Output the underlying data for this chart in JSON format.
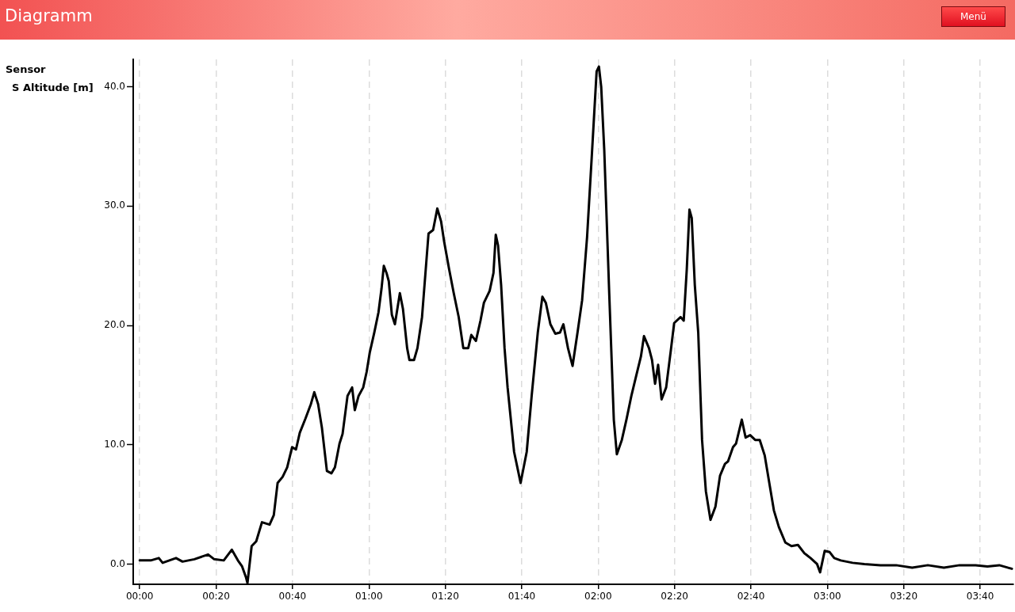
{
  "chart_data": {
    "type": "line",
    "title": "Diagramm",
    "annotations": [
      "Menü"
    ],
    "legend_title": "Sensor",
    "legend": "left",
    "grid": "x",
    "line_style": "solid",
    "marker": "none",
    "xlim": [
      -1.7,
      228.7
    ],
    "ylim": [
      -1.7,
      42.3
    ],
    "xticks": [
      {
        "value": 0,
        "label": "00:00"
      },
      {
        "value": 20,
        "label": "00:20"
      },
      {
        "value": 40,
        "label": "00:40"
      },
      {
        "value": 60,
        "label": "01:00"
      },
      {
        "value": 80,
        "label": "01:20"
      },
      {
        "value": 100,
        "label": "01:40"
      },
      {
        "value": 120,
        "label": "02:00"
      },
      {
        "value": 140,
        "label": "02:20"
      },
      {
        "value": 160,
        "label": "02:40"
      },
      {
        "value": 180,
        "label": "03:00"
      },
      {
        "value": 200,
        "label": "03:20"
      },
      {
        "value": 220,
        "label": "03:40"
      }
    ],
    "yticks": [
      {
        "value": 0,
        "label": "0.0"
      },
      {
        "value": 10,
        "label": "10.0"
      },
      {
        "value": 20,
        "label": "20.0"
      },
      {
        "value": 30,
        "label": "30.0"
      },
      {
        "value": 40,
        "label": "40.0"
      }
    ],
    "series": [
      {
        "name": "S Altitude [m]",
        "color": "#000000",
        "x": [
          0,
          2.9,
          5.0,
          6.0,
          9.5,
          11.2,
          14.3,
          17.9,
          19.5,
          22.0,
          24.1,
          25.7,
          26.8,
          27.8,
          28.2,
          29.3,
          30.5,
          32.0,
          34.0,
          35.1,
          36.1,
          37.4,
          38.6,
          39.9,
          40.9,
          41.9,
          43.4,
          44.8,
          45.7,
          46.7,
          47.7,
          49.0,
          50.2,
          51.1,
          52.3,
          53.1,
          54.4,
          55.6,
          56.3,
          57.3,
          58.5,
          59.4,
          60.2,
          61.4,
          62.5,
          63.3,
          63.9,
          64.6,
          65.2,
          66.0,
          66.8,
          68.1,
          68.9,
          70.0,
          70.6,
          71.8,
          72.7,
          73.9,
          75.6,
          76.8,
          77.9,
          78.9,
          79.7,
          81.0,
          82.2,
          83.5,
          84.7,
          86.0,
          86.8,
          88.0,
          89.2,
          90.1,
          91.6,
          92.6,
          93.2,
          93.8,
          94.6,
          95.5,
          96.3,
          98.0,
          99.7,
          101.3,
          102.6,
          104.2,
          105.4,
          106.3,
          107.5,
          108.8,
          110.0,
          110.9,
          112.1,
          113.3,
          114.6,
          115.8,
          117.1,
          118.3,
          119.6,
          120.2,
          120.8,
          121.6,
          122.9,
          124.1,
          124.9,
          126.2,
          127.4,
          128.7,
          129.9,
          131.2,
          132.0,
          133.3,
          134.1,
          134.9,
          135.7,
          136.6,
          137.8,
          139.1,
          139.9,
          141.6,
          142.4,
          143.2,
          143.9,
          144.5,
          145.3,
          146.2,
          147.2,
          148.2,
          149.4,
          150.7,
          151.9,
          153.2,
          154.0,
          155.3,
          156.1,
          157.6,
          158.6,
          159.8,
          161.1,
          162.3,
          163.6,
          164.8,
          166.0,
          167.3,
          169.0,
          170.6,
          172.3,
          174.0,
          175.6,
          177.3,
          178.1,
          179.3,
          180.6,
          181.8,
          183.5,
          186.6,
          189.7,
          193.9,
          198.0,
          202.2,
          206.3,
          210.5,
          214.6,
          218.8,
          221.9,
          225.0,
          228.3
        ],
        "values": [
          0.3,
          0.3,
          0.5,
          0.1,
          0.5,
          0.2,
          0.4,
          0.8,
          0.4,
          0.3,
          1.2,
          0.3,
          -0.2,
          -1.1,
          -1.6,
          1.5,
          1.9,
          3.5,
          3.3,
          4.1,
          6.8,
          7.3,
          8.1,
          9.8,
          9.6,
          11.0,
          12.2,
          13.4,
          14.4,
          13.4,
          11.4,
          7.8,
          7.6,
          8.1,
          10.1,
          10.9,
          14.1,
          14.8,
          12.9,
          14.1,
          14.8,
          16.1,
          17.7,
          19.4,
          21.1,
          23.1,
          25.0,
          24.4,
          23.7,
          20.9,
          20.1,
          22.7,
          21.4,
          18.1,
          17.1,
          17.1,
          18.1,
          20.7,
          27.7,
          28.0,
          29.8,
          28.7,
          27.0,
          24.7,
          22.7,
          20.7,
          18.1,
          18.1,
          19.2,
          18.7,
          20.4,
          21.9,
          22.9,
          24.4,
          27.6,
          26.7,
          23.4,
          18.1,
          14.8,
          9.4,
          6.8,
          9.4,
          14.1,
          19.4,
          22.4,
          21.9,
          20.1,
          19.3,
          19.4,
          20.1,
          18.1,
          16.6,
          19.4,
          22.1,
          27.4,
          34.0,
          41.3,
          41.7,
          40.0,
          34.7,
          22.7,
          12.1,
          9.2,
          10.4,
          12.1,
          14.1,
          15.7,
          17.4,
          19.1,
          18.1,
          17.1,
          15.1,
          16.7,
          13.8,
          14.8,
          18.1,
          20.2,
          20.7,
          20.4,
          24.7,
          29.7,
          29.0,
          23.4,
          19.4,
          10.4,
          6.1,
          3.7,
          4.8,
          7.4,
          8.4,
          8.6,
          9.8,
          10.1,
          12.1,
          10.6,
          10.8,
          10.4,
          10.4,
          9.1,
          6.8,
          4.5,
          3.1,
          1.8,
          1.5,
          1.6,
          0.9,
          0.5,
          0.0,
          -0.7,
          1.1,
          1.0,
          0.5,
          0.3,
          0.1,
          0.0,
          -0.1,
          -0.1,
          -0.3,
          -0.1,
          -0.3,
          -0.1,
          -0.1,
          -0.2,
          -0.1,
          -0.4
        ]
      }
    ]
  }
}
